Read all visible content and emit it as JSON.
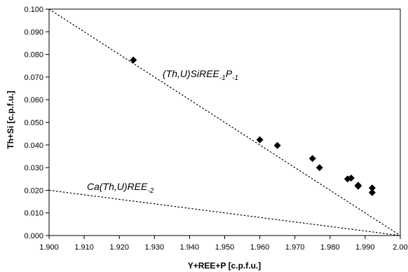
{
  "chart_data": {
    "type": "scatter",
    "title": "",
    "xlabel": "Y+REE+P [c.p.f.u.]",
    "ylabel": "Th+Si [c.p.f.u.]",
    "xlim": [
      1.9,
      2.0
    ],
    "ylim": [
      0.0,
      0.1
    ],
    "x_ticks": [
      "1.900",
      "1.910",
      "1.920",
      "1.930",
      "1.940",
      "1.950",
      "1.960",
      "1.970",
      "1.980",
      "1.990",
      "2.00"
    ],
    "y_ticks": [
      "0.000",
      "0.010",
      "0.020",
      "0.030",
      "0.040",
      "0.050",
      "0.060",
      "0.070",
      "0.080",
      "0.090",
      "0.100"
    ],
    "grid": false,
    "marker": "diamond",
    "marker_color": "#000000",
    "points": [
      {
        "x": 1.924,
        "y": 0.0775
      },
      {
        "x": 1.96,
        "y": 0.0423
      },
      {
        "x": 1.965,
        "y": 0.0398
      },
      {
        "x": 1.975,
        "y": 0.034
      },
      {
        "x": 1.977,
        "y": 0.03
      },
      {
        "x": 1.985,
        "y": 0.025
      },
      {
        "x": 1.986,
        "y": 0.0254
      },
      {
        "x": 1.988,
        "y": 0.0222
      },
      {
        "x": 1.988,
        "y": 0.0218
      },
      {
        "x": 1.992,
        "y": 0.021
      },
      {
        "x": 1.992,
        "y": 0.019
      }
    ],
    "lines": [
      {
        "style": "dotted",
        "from": [
          1.9,
          0.1
        ],
        "to": [
          2.0,
          0.0
        ],
        "label": {
          "base": "(Th,U)SiREE",
          "sub1": "-1",
          "mid": "P",
          "sub2": "-1"
        }
      },
      {
        "style": "dotted",
        "from": [
          1.9,
          0.02
        ],
        "to": [
          2.0,
          0.0
        ],
        "label": {
          "base": "Ca(Th,U)REE",
          "sub1": "-2",
          "mid": "",
          "sub2": ""
        }
      }
    ]
  }
}
